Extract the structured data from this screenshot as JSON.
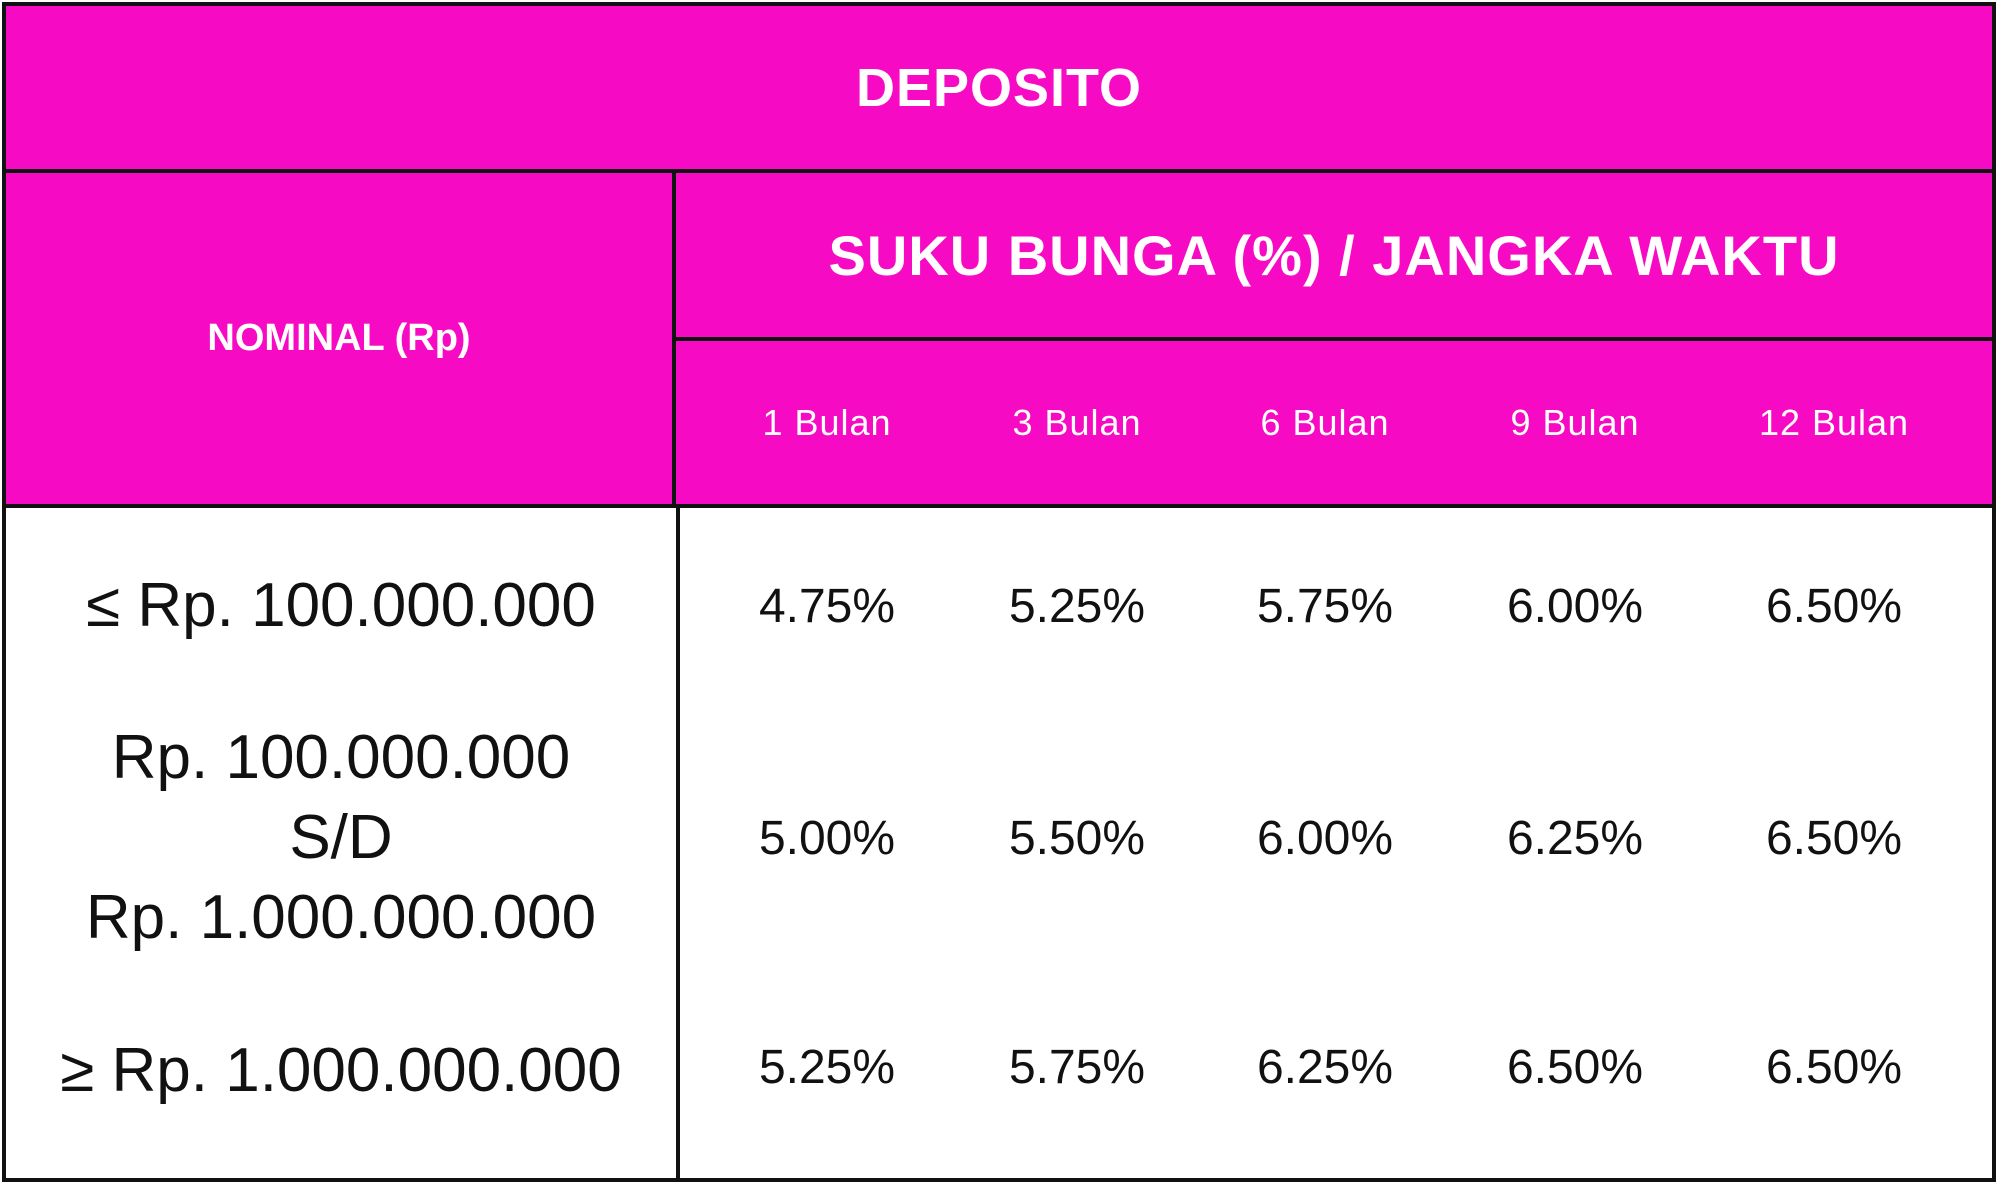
{
  "title": "DEPOSITO",
  "nominal_header": "NOMINAL (Rp)",
  "rate_header": "SUKU BUNGA (%) / JANGKA WAKTU",
  "terms": [
    "1 Bulan",
    "3 Bulan",
    "6 Bulan",
    "9 Bulan",
    "12 Bulan"
  ],
  "rows": [
    {
      "nominal": [
        "≤ Rp. 100.000.000"
      ],
      "rates": [
        "4.75%",
        "5.25%",
        "5.75%",
        "6.00%",
        "6.50%"
      ]
    },
    {
      "nominal": [
        "Rp. 100.000.000",
        "S/D",
        "Rp. 1.000.000.000"
      ],
      "rates": [
        "5.00%",
        "5.50%",
        "6.00%",
        "6.25%",
        "6.50%"
      ]
    },
    {
      "nominal": [
        "≥ Rp. 1.000.000.000"
      ],
      "rates": [
        "5.25%",
        "5.75%",
        "6.25%",
        "6.50%",
        "6.50%"
      ]
    }
  ],
  "colors": {
    "header_bg": "#f70ac4",
    "header_text": "#ffffff",
    "border": "#111111"
  }
}
